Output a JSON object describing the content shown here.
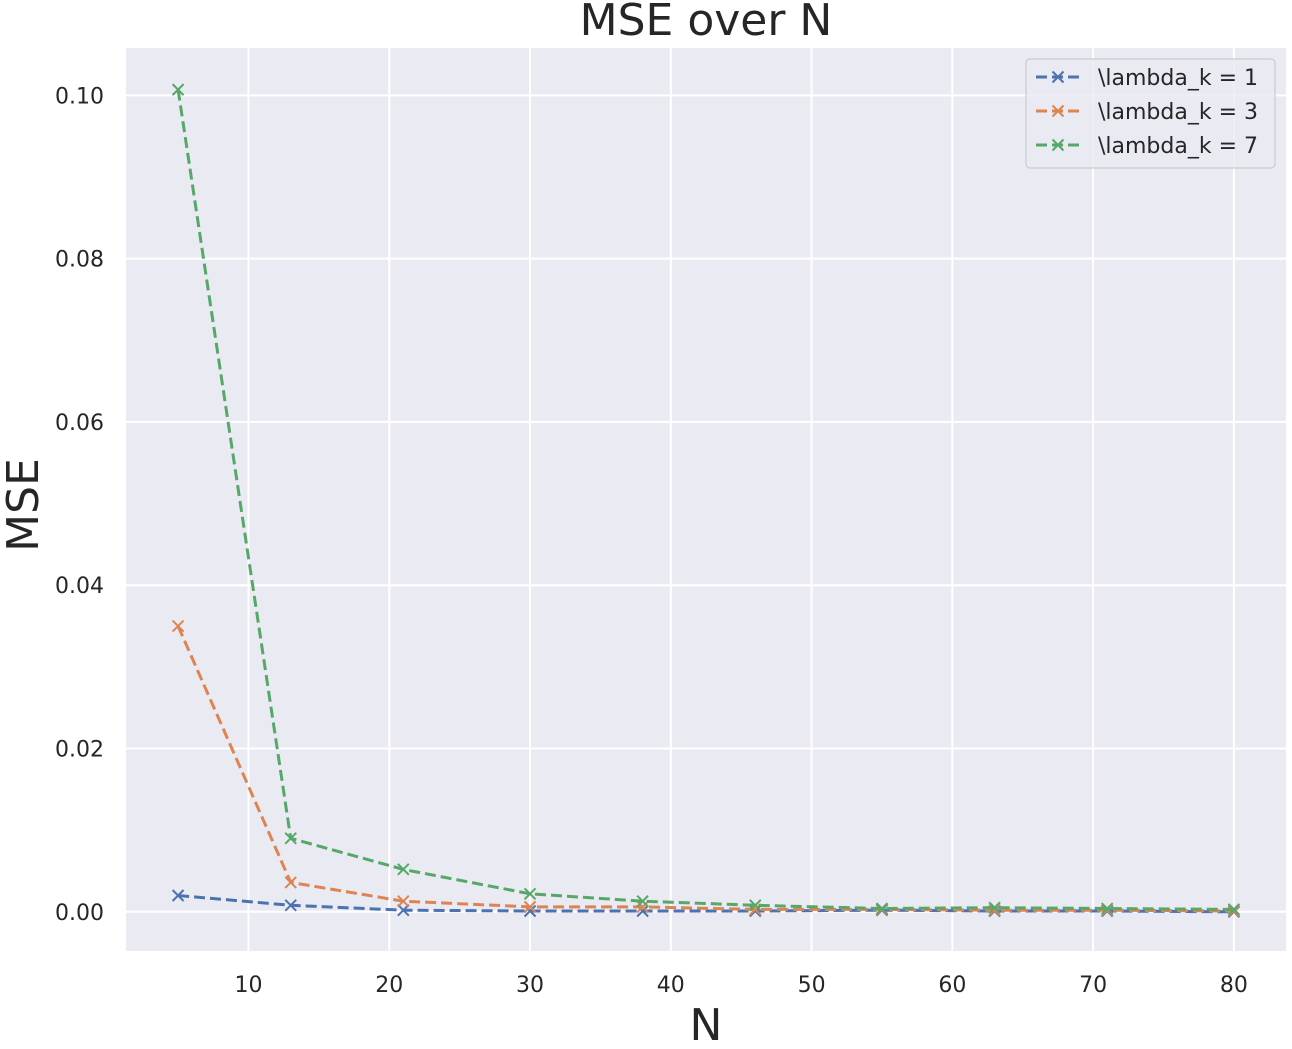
{
  "chart_data": {
    "type": "line",
    "title": "MSE over N",
    "xlabel": "N",
    "ylabel": "MSE",
    "xlim": [
      1.3,
      83.7
    ],
    "ylim": [
      -0.0048,
      0.1058
    ],
    "xticks": [
      10,
      20,
      30,
      40,
      50,
      60,
      70,
      80
    ],
    "yticks": [
      0.0,
      0.02,
      0.04,
      0.06,
      0.08,
      0.1
    ],
    "ytick_labels": [
      "0.00",
      "0.02",
      "0.04",
      "0.06",
      "0.08",
      "0.10"
    ],
    "grid": true,
    "legend_position": "top-right",
    "line_style": "dashed",
    "marker": "x",
    "x": [
      5,
      13,
      21,
      30,
      38,
      46,
      55,
      63,
      71,
      80
    ],
    "series": [
      {
        "name": "\\lambda_k = 1",
        "color": "#4c72b0",
        "values": [
          0.002,
          0.0008,
          0.0002,
          0.0001,
          0.0001,
          0.0001,
          0.0002,
          0.0001,
          0.0001,
          0.0
        ]
      },
      {
        "name": "\\lambda_k = 3",
        "color": "#dd8452",
        "values": [
          0.035,
          0.0036,
          0.0013,
          0.0006,
          0.0006,
          0.0003,
          0.0003,
          0.0002,
          0.0002,
          0.0001
        ]
      },
      {
        "name": "\\lambda_k = 7",
        "color": "#55a868",
        "values": [
          0.1007,
          0.009,
          0.0052,
          0.0022,
          0.0013,
          0.0008,
          0.0004,
          0.0005,
          0.0004,
          0.0003
        ]
      }
    ]
  }
}
